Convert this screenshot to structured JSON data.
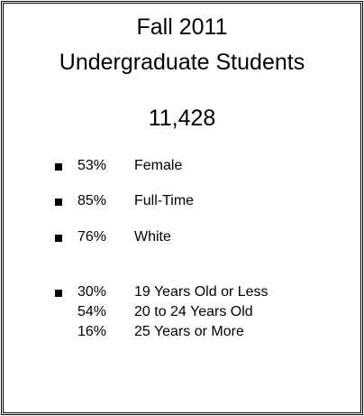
{
  "title": [
    "Fall 2011",
    "Undergraduate Students"
  ],
  "total": "11,428",
  "items": [
    {
      "percent": "53%",
      "label": "Female"
    },
    {
      "percent": "85%",
      "label": "Full-Time"
    },
    {
      "percent": "76%",
      "label": "White"
    }
  ],
  "age_groups": [
    {
      "percent": "30%",
      "label": "19 Years Old or Less"
    },
    {
      "percent": "54%",
      "label": "20 to 24 Years Old"
    },
    {
      "percent": "16%",
      "label": "25 Years or More"
    }
  ]
}
